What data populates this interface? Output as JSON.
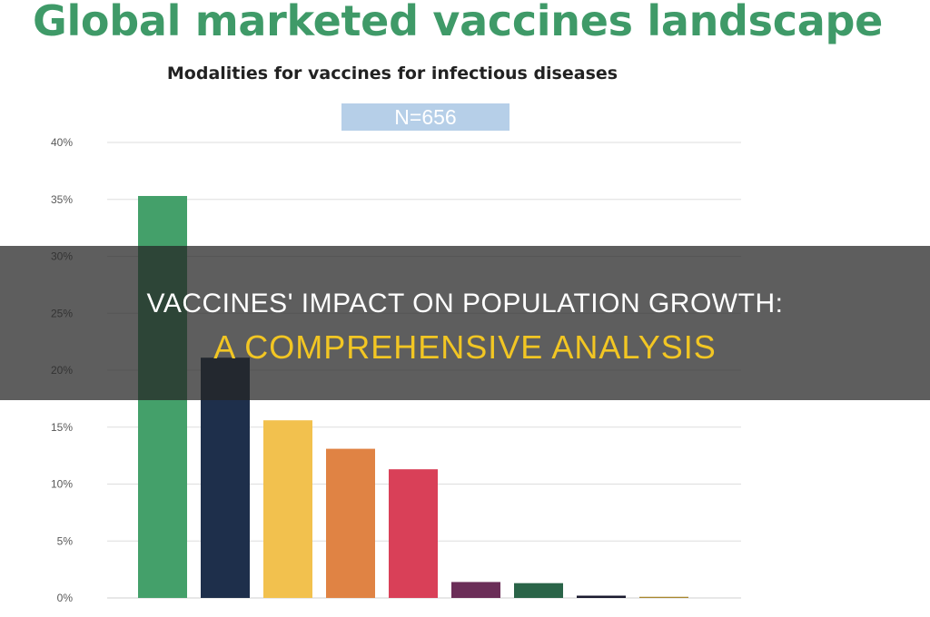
{
  "header": {
    "title": "Global marketed vaccines landscape",
    "n_label": "N=656"
  },
  "overlay": {
    "headline": "VACCINES' IMPACT ON POPULATION GROWTH:",
    "subheadline": "A COMPREHENSIVE ANALYSIS"
  },
  "chart_data": {
    "type": "bar",
    "title": "Modalities for vaccines for infectious diseases",
    "xlabel": "",
    "ylabel": "",
    "ylim": [
      0,
      40
    ],
    "yticks": [
      "0%",
      "5%",
      "10%",
      "15%",
      "20%",
      "25%",
      "30%",
      "35%",
      "40%"
    ],
    "grid": true,
    "values": [
      35.3,
      21.1,
      15.6,
      13.1,
      11.3,
      1.4,
      1.3,
      0.2,
      0.1
    ],
    "colors": [
      "#44a06a",
      "#1e2f4b",
      "#f2c14e",
      "#e08344",
      "#d94058",
      "#6b2e58",
      "#2a6448",
      "#1a1a2e",
      "#a8862e"
    ]
  }
}
